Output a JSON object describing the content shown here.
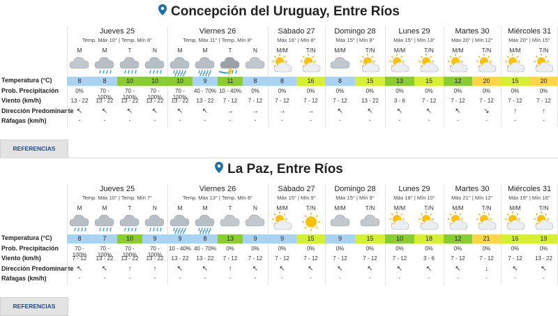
{
  "row_labels": [
    "Temperatura (°C)",
    "Prob. Precipitación",
    "Viento (km/h)",
    "Dirección Predominante",
    "Ráfagas (km/h)"
  ],
  "button_label": "REFERENCIAS",
  "colors": {
    "cold": "#a9d3f1",
    "cool": "#8ccc33",
    "mild": "#d6ef35",
    "warm": "#ffd54a",
    "accent": "#1d6fa5"
  },
  "locations": [
    {
      "title": "Concepción del Uruguay, Entre Ríos",
      "days": [
        {
          "name": "Jueves 25",
          "info": "Temp. Máx 10° | Temp. Mín 8°",
          "periods": [
            {
              "p": "M",
              "icon": "cloud-icon",
              "t": "8",
              "tc": "cold",
              "prob": "0%",
              "wind": "13 - 22",
              "dir": "↖",
              "gust": "-"
            },
            {
              "p": "M",
              "icon": "rain-icon",
              "t": "8",
              "tc": "cold",
              "prob": "70 - 100%",
              "wind": "13 - 22",
              "dir": "↖",
              "gust": "-"
            },
            {
              "p": "T",
              "icon": "rain-icon",
              "t": "10",
              "tc": "cool",
              "prob": "70 - 100%",
              "wind": "13 - 22",
              "dir": "↖",
              "gust": "-"
            },
            {
              "p": "N",
              "icon": "rain-icon",
              "t": "10",
              "tc": "cool",
              "prob": "70 - 100%",
              "wind": "13 - 22",
              "dir": "↖",
              "gust": "-"
            }
          ]
        },
        {
          "name": "Viernes 26",
          "info": "Temp. Máx 11° | Temp. Mín 8°",
          "periods": [
            {
              "p": "M",
              "icon": "heavy-rain-icon",
              "t": "10",
              "tc": "cool",
              "prob": "70 - 100%",
              "wind": "13 - 22",
              "dir": "↖",
              "gust": "-"
            },
            {
              "p": "M",
              "icon": "heavy-rain-icon",
              "t": "9",
              "tc": "cold",
              "prob": "40 - 70%",
              "wind": "13 - 22",
              "dir": "↖",
              "gust": "-"
            },
            {
              "p": "T",
              "icon": "storm-icon",
              "t": "11",
              "tc": "cool",
              "prob": "10 - 40%",
              "wind": "7 - 12",
              "dir": "→",
              "gust": "-"
            },
            {
              "p": "N",
              "icon": "cloud-icon",
              "t": "8",
              "tc": "cold",
              "prob": "0%",
              "wind": "7 - 12",
              "dir": "→",
              "gust": "-"
            }
          ]
        },
        {
          "name": "Sábado 27",
          "info": "Máx 16° | Mín 8°",
          "periods": [
            {
              "p": "M/M",
              "icon": "sun-cloud-icon",
              "t": "8",
              "tc": "cold",
              "prob": "0%",
              "wind": "7 - 12",
              "dir": "→",
              "gust": "-"
            },
            {
              "p": "T/N",
              "icon": "sun-cloud-icon",
              "t": "16",
              "tc": "mild",
              "prob": "0%",
              "wind": "7 - 12",
              "dir": "→",
              "gust": "-"
            }
          ]
        },
        {
          "name": "Domingo 28",
          "info": "Máx 15° | Mín 8°",
          "periods": [
            {
              "p": "M/M",
              "icon": "cloud-icon",
              "t": "8",
              "tc": "cold",
              "prob": "0%",
              "wind": "7 - 12",
              "dir": "↖",
              "gust": "-"
            },
            {
              "p": "T/N",
              "icon": "sun-cloud-icon",
              "t": "15",
              "tc": "mild",
              "prob": "0%",
              "wind": "13 - 22",
              "dir": "↖",
              "gust": "-"
            }
          ]
        },
        {
          "name": "Lunes 29",
          "info": "Máx 15° | Mín 13°",
          "periods": [
            {
              "p": "M/M",
              "icon": "sun-cloud-icon",
              "t": "13",
              "tc": "cool",
              "prob": "0%",
              "wind": "3 - 6",
              "dir": "↖",
              "gust": "-"
            },
            {
              "p": "T/N",
              "icon": "sun-cloud-icon",
              "t": "15",
              "tc": "mild",
              "prob": "0%",
              "wind": "7 - 12",
              "dir": "↖",
              "gust": "-"
            }
          ]
        },
        {
          "name": "Martes 30",
          "info": "Máx 20° | Mín 12°",
          "periods": [
            {
              "p": "M/M",
              "icon": "sun-cloud-icon",
              "t": "12",
              "tc": "cool",
              "prob": "0%",
              "wind": "7 - 12",
              "dir": "↖",
              "gust": "-"
            },
            {
              "p": "T/N",
              "icon": "sun-cloud-icon",
              "t": "20",
              "tc": "warm",
              "prob": "0%",
              "wind": "7 - 12",
              "dir": "↘",
              "gust": "-"
            }
          ]
        },
        {
          "name": "Miércoles 31",
          "info": "Máx 20° | Mín 15°",
          "periods": [
            {
              "p": "M/M",
              "icon": "sun-cloud-icon",
              "t": "15",
              "tc": "mild",
              "prob": "0%",
              "wind": "7 - 12",
              "dir": "↑",
              "gust": "-"
            },
            {
              "p": "T/N",
              "icon": "sun-cloud-icon",
              "t": "20",
              "tc": "warm",
              "prob": "0%",
              "wind": "7 - 12",
              "dir": "↑",
              "gust": "-"
            }
          ]
        }
      ]
    },
    {
      "title": "La Paz, Entre Ríos",
      "days": [
        {
          "name": "Jueves 25",
          "info": "Temp. Máx 10° | Temp. Mín 7°",
          "periods": [
            {
              "p": "M",
              "icon": "rain-icon",
              "t": "8",
              "tc": "cold",
              "prob": "70 - 100%",
              "wind": "7 - 12",
              "dir": "↖",
              "gust": "-"
            },
            {
              "p": "M",
              "icon": "rain-icon",
              "t": "7",
              "tc": "cold",
              "prob": "70 - 100%",
              "wind": "13 - 22",
              "dir": "↖",
              "gust": "-"
            },
            {
              "p": "T",
              "icon": "rain-icon",
              "t": "10",
              "tc": "cool",
              "prob": "70 - 100%",
              "wind": "13 - 22",
              "dir": "↑",
              "gust": "-"
            },
            {
              "p": "N",
              "icon": "rain-icon",
              "t": "9",
              "tc": "cold",
              "prob": "70 - 100%",
              "wind": "13 - 22",
              "dir": "↑",
              "gust": "-"
            }
          ]
        },
        {
          "name": "Viernes 26",
          "info": "Temp. Máx 13° | Temp. Mín 8°",
          "periods": [
            {
              "p": "M",
              "icon": "heavy-rain-icon",
              "t": "9",
              "tc": "cold",
              "prob": "10 - 40%",
              "wind": "13 - 22",
              "dir": "↖",
              "gust": "-"
            },
            {
              "p": "M",
              "icon": "heavy-rain-icon",
              "t": "8",
              "tc": "cold",
              "prob": "40 - 70%",
              "wind": "13 - 22",
              "dir": "↖",
              "gust": "-"
            },
            {
              "p": "T",
              "icon": "cloud-icon",
              "t": "13",
              "tc": "cool",
              "prob": "0%",
              "wind": "7 - 12",
              "dir": "↑",
              "gust": "-"
            },
            {
              "p": "N",
              "icon": "moon-cloud-icon",
              "t": "9",
              "tc": "cold",
              "prob": "0%",
              "wind": "7 - 12",
              "dir": "↖",
              "gust": "-"
            }
          ]
        },
        {
          "name": "Sábado 27",
          "info": "Máx 15° | Mín 9°",
          "periods": [
            {
              "p": "M/M",
              "icon": "sun-cloud-icon",
              "t": "9",
              "tc": "cold",
              "prob": "0%",
              "wind": "7 - 12",
              "dir": "↖",
              "gust": "-"
            },
            {
              "p": "T/N",
              "icon": "sun-icon",
              "t": "15",
              "tc": "mild",
              "prob": "0%",
              "wind": "7 - 12",
              "dir": "↖",
              "gust": "-"
            }
          ]
        },
        {
          "name": "Domingo 28",
          "info": "Máx 15° | Mín 9°",
          "periods": [
            {
              "p": "M/M",
              "icon": "cloud-icon",
              "t": "9",
              "tc": "cold",
              "prob": "0%",
              "wind": "7 - 12",
              "dir": "↖",
              "gust": "-"
            },
            {
              "p": "T/N",
              "icon": "cloud-icon",
              "t": "15",
              "tc": "mild",
              "prob": "0%",
              "wind": "7 - 12",
              "dir": "↖",
              "gust": "-"
            }
          ]
        },
        {
          "name": "Lunes 29",
          "info": "Máx 18° | Mín 10°",
          "periods": [
            {
              "p": "M/M",
              "icon": "sun-cloud-icon",
              "t": "10",
              "tc": "cool",
              "prob": "0%",
              "wind": "7 - 12",
              "dir": "↖",
              "gust": "-"
            },
            {
              "p": "T/N",
              "icon": "sun-cloud-icon",
              "t": "18",
              "tc": "mild",
              "prob": "0%",
              "wind": "3 - 6",
              "dir": "↖",
              "gust": "-"
            }
          ]
        },
        {
          "name": "Martes 30",
          "info": "Máx 21° | Mín 12°",
          "periods": [
            {
              "p": "M/M",
              "icon": "sun-cloud-icon",
              "t": "12",
              "tc": "cool",
              "prob": "0%",
              "wind": "7 - 12",
              "dir": "↖",
              "gust": "-"
            },
            {
              "p": "T/N",
              "icon": "sun-cloud-icon",
              "t": "21",
              "tc": "warm",
              "prob": "0%",
              "wind": "7 - 12",
              "dir": "↓",
              "gust": "-"
            }
          ]
        },
        {
          "name": "Miércoles 31",
          "info": "Máx 19° | Mín 16°",
          "periods": [
            {
              "p": "M/M",
              "icon": "sun-cloud-icon",
              "t": "16",
              "tc": "mild",
              "prob": "0%",
              "wind": "7 - 12",
              "dir": "↖",
              "gust": "-"
            },
            {
              "p": "T/N",
              "icon": "sun-cloud-icon",
              "t": "19",
              "tc": "mild",
              "prob": "0%",
              "wind": "13 - 22",
              "dir": "↖",
              "gust": "-"
            }
          ]
        }
      ]
    }
  ]
}
